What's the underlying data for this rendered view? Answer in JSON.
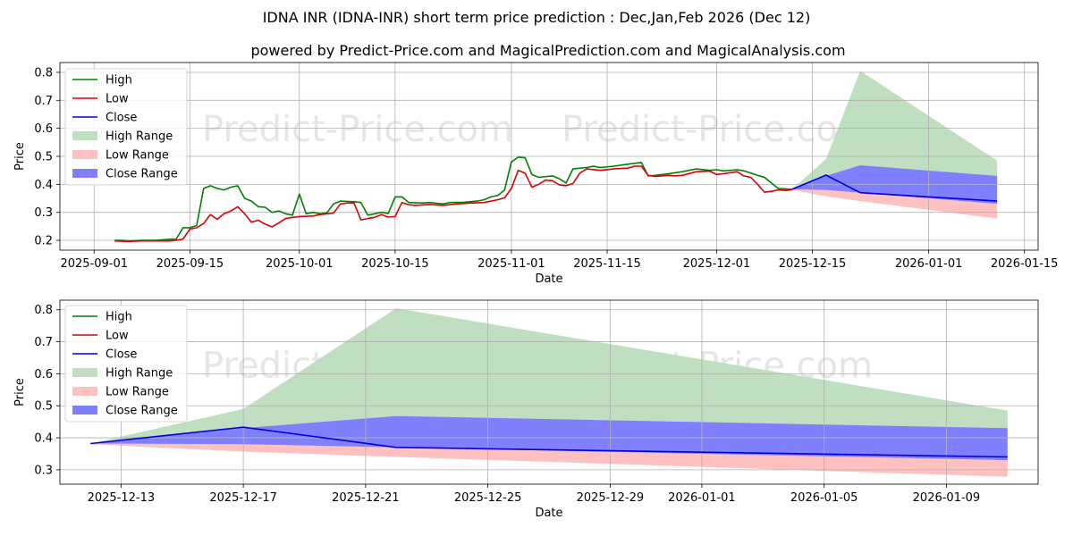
{
  "title": "IDNA INR (IDNA-INR) short term price prediction : Dec,Jan,Feb 2026 (Dec 12)",
  "subtitle": "powered by Predict-Price.com and MagicalPrediction.com and MagicalAnalysis.com",
  "watermark": "Predict-Price.com",
  "colors": {
    "high": "#008000",
    "low": "#dd0000",
    "close": "#0000dd",
    "high_range": "#c0dfc0",
    "low_range": "#ffc0c0",
    "close_range": "#8080ff",
    "grid": "#b0b0b0"
  },
  "legend": [
    {
      "key": "high",
      "label": "High",
      "kind": "line"
    },
    {
      "key": "low",
      "label": "Low",
      "kind": "line"
    },
    {
      "key": "close",
      "label": "Close",
      "kind": "line"
    },
    {
      "key": "high_range",
      "label": "High Range",
      "kind": "patch"
    },
    {
      "key": "low_range",
      "label": "Low Range",
      "kind": "patch"
    },
    {
      "key": "close_range",
      "label": "Close Range",
      "kind": "patch"
    }
  ],
  "chart_data": [
    {
      "type": "line",
      "name": "top",
      "xlabel": "Date",
      "ylabel": "Price",
      "xlim": [
        "2025-08-27",
        "2026-01-17"
      ],
      "ylim": [
        0.165,
        0.835
      ],
      "yticks": [
        0.2,
        0.3,
        0.4,
        0.5,
        0.6,
        0.7,
        0.8
      ],
      "ytick_labels": [
        "0.2",
        "0.3",
        "0.4",
        "0.5",
        "0.6",
        "0.7",
        "0.8"
      ],
      "xticks": [
        "2025-09-01",
        "2025-09-15",
        "2025-10-01",
        "2025-10-15",
        "2025-11-01",
        "2025-11-15",
        "2025-12-01",
        "2025-12-15",
        "2026-01-01",
        "2026-01-15"
      ],
      "xtick_labels": [
        "2025-09-01",
        "2025-09-15",
        "2025-10-01",
        "2025-10-15",
        "2025-11-01",
        "2025-11-15",
        "2025-12-01",
        "2025-12-15",
        "2026-01-01",
        "2026-01-15"
      ],
      "grid": true,
      "legend_position": "top-left",
      "series": [
        {
          "name": "High",
          "key": "high",
          "points": [
            [
              "2025-09-04",
              0.2
            ],
            [
              "2025-09-05",
              0.2
            ],
            [
              "2025-09-06",
              0.198
            ],
            [
              "2025-09-08",
              0.2
            ],
            [
              "2025-09-10",
              0.2
            ],
            [
              "2025-09-12",
              0.204
            ],
            [
              "2025-09-13",
              0.205
            ],
            [
              "2025-09-14",
              0.245
            ],
            [
              "2025-09-15",
              0.245
            ],
            [
              "2025-09-16",
              0.253
            ],
            [
              "2025-09-17",
              0.385
            ],
            [
              "2025-09-18",
              0.395
            ],
            [
              "2025-09-19",
              0.385
            ],
            [
              "2025-09-20",
              0.38
            ],
            [
              "2025-09-21",
              0.39
            ],
            [
              "2025-09-22",
              0.395
            ],
            [
              "2025-09-23",
              0.35
            ],
            [
              "2025-09-24",
              0.34
            ],
            [
              "2025-09-25",
              0.32
            ],
            [
              "2025-09-26",
              0.318
            ],
            [
              "2025-09-27",
              0.3
            ],
            [
              "2025-09-28",
              0.305
            ],
            [
              "2025-09-29",
              0.295
            ],
            [
              "2025-09-30",
              0.29
            ],
            [
              "2025-10-01",
              0.365
            ],
            [
              "2025-10-02",
              0.295
            ],
            [
              "2025-10-03",
              0.3
            ],
            [
              "2025-10-04",
              0.295
            ],
            [
              "2025-10-05",
              0.298
            ],
            [
              "2025-10-06",
              0.33
            ],
            [
              "2025-10-07",
              0.34
            ],
            [
              "2025-10-09",
              0.338
            ],
            [
              "2025-10-10",
              0.335
            ],
            [
              "2025-10-11",
              0.29
            ],
            [
              "2025-10-12",
              0.295
            ],
            [
              "2025-10-13",
              0.3
            ],
            [
              "2025-10-14",
              0.296
            ],
            [
              "2025-10-15",
              0.355
            ],
            [
              "2025-10-16",
              0.355
            ],
            [
              "2025-10-17",
              0.335
            ],
            [
              "2025-10-19",
              0.333
            ],
            [
              "2025-10-20",
              0.335
            ],
            [
              "2025-10-22",
              0.33
            ],
            [
              "2025-10-23",
              0.335
            ],
            [
              "2025-10-25",
              0.336
            ],
            [
              "2025-10-27",
              0.34
            ],
            [
              "2025-10-28",
              0.345
            ],
            [
              "2025-10-29",
              0.355
            ],
            [
              "2025-10-30",
              0.36
            ],
            [
              "2025-10-31",
              0.38
            ],
            [
              "2025-11-01",
              0.48
            ],
            [
              "2025-11-02",
              0.497
            ],
            [
              "2025-11-03",
              0.495
            ],
            [
              "2025-11-04",
              0.435
            ],
            [
              "2025-11-05",
              0.425
            ],
            [
              "2025-11-07",
              0.43
            ],
            [
              "2025-11-08",
              0.42
            ],
            [
              "2025-11-09",
              0.405
            ],
            [
              "2025-11-10",
              0.455
            ],
            [
              "2025-11-12",
              0.46
            ],
            [
              "2025-11-13",
              0.465
            ],
            [
              "2025-11-14",
              0.46
            ],
            [
              "2025-11-16",
              0.465
            ],
            [
              "2025-11-18",
              0.472
            ],
            [
              "2025-11-20",
              0.478
            ],
            [
              "2025-11-21",
              0.43
            ],
            [
              "2025-11-22",
              0.432
            ],
            [
              "2025-11-24",
              0.438
            ],
            [
              "2025-11-26",
              0.445
            ],
            [
              "2025-11-28",
              0.455
            ],
            [
              "2025-11-30",
              0.45
            ],
            [
              "2025-12-01",
              0.452
            ],
            [
              "2025-12-02",
              0.448
            ],
            [
              "2025-12-04",
              0.452
            ],
            [
              "2025-12-05",
              0.448
            ],
            [
              "2025-12-06",
              0.44
            ],
            [
              "2025-12-07",
              0.432
            ],
            [
              "2025-12-08",
              0.425
            ],
            [
              "2025-12-09",
              0.405
            ],
            [
              "2025-12-10",
              0.385
            ],
            [
              "2025-12-11",
              0.384
            ],
            [
              "2025-12-12",
              0.382
            ]
          ]
        },
        {
          "name": "Low",
          "key": "low",
          "points": [
            [
              "2025-09-04",
              0.198
            ],
            [
              "2025-09-06",
              0.196
            ],
            [
              "2025-09-08",
              0.198
            ],
            [
              "2025-09-10",
              0.198
            ],
            [
              "2025-09-12",
              0.198
            ],
            [
              "2025-09-13",
              0.2
            ],
            [
              "2025-09-14",
              0.205
            ],
            [
              "2025-09-15",
              0.24
            ],
            [
              "2025-09-16",
              0.245
            ],
            [
              "2025-09-17",
              0.26
            ],
            [
              "2025-09-18",
              0.292
            ],
            [
              "2025-09-19",
              0.275
            ],
            [
              "2025-09-20",
              0.295
            ],
            [
              "2025-09-21",
              0.305
            ],
            [
              "2025-09-22",
              0.32
            ],
            [
              "2025-09-23",
              0.295
            ],
            [
              "2025-09-24",
              0.265
            ],
            [
              "2025-09-25",
              0.272
            ],
            [
              "2025-09-26",
              0.258
            ],
            [
              "2025-09-27",
              0.248
            ],
            [
              "2025-09-28",
              0.262
            ],
            [
              "2025-09-29",
              0.278
            ],
            [
              "2025-09-30",
              0.282
            ],
            [
              "2025-10-01",
              0.285
            ],
            [
              "2025-10-03",
              0.287
            ],
            [
              "2025-10-04",
              0.292
            ],
            [
              "2025-10-06",
              0.297
            ],
            [
              "2025-10-07",
              0.33
            ],
            [
              "2025-10-08",
              0.333
            ],
            [
              "2025-10-09",
              0.333
            ],
            [
              "2025-10-10",
              0.273
            ],
            [
              "2025-10-11",
              0.278
            ],
            [
              "2025-10-12",
              0.282
            ],
            [
              "2025-10-13",
              0.292
            ],
            [
              "2025-10-14",
              0.283
            ],
            [
              "2025-10-15",
              0.285
            ],
            [
              "2025-10-16",
              0.335
            ],
            [
              "2025-10-17",
              0.327
            ],
            [
              "2025-10-18",
              0.325
            ],
            [
              "2025-10-20",
              0.328
            ],
            [
              "2025-10-22",
              0.325
            ],
            [
              "2025-10-24",
              0.33
            ],
            [
              "2025-10-26",
              0.333
            ],
            [
              "2025-10-28",
              0.335
            ],
            [
              "2025-10-30",
              0.345
            ],
            [
              "2025-10-31",
              0.352
            ],
            [
              "2025-11-01",
              0.385
            ],
            [
              "2025-11-02",
              0.45
            ],
            [
              "2025-11-03",
              0.44
            ],
            [
              "2025-11-04",
              0.39
            ],
            [
              "2025-11-05",
              0.4
            ],
            [
              "2025-11-06",
              0.415
            ],
            [
              "2025-11-07",
              0.413
            ],
            [
              "2025-11-08",
              0.398
            ],
            [
              "2025-11-09",
              0.395
            ],
            [
              "2025-11-10",
              0.403
            ],
            [
              "2025-11-11",
              0.44
            ],
            [
              "2025-11-12",
              0.455
            ],
            [
              "2025-11-14",
              0.45
            ],
            [
              "2025-11-16",
              0.455
            ],
            [
              "2025-11-18",
              0.458
            ],
            [
              "2025-11-19",
              0.465
            ],
            [
              "2025-11-20",
              0.465
            ],
            [
              "2025-11-21",
              0.432
            ],
            [
              "2025-11-22",
              0.428
            ],
            [
              "2025-11-24",
              0.432
            ],
            [
              "2025-11-25",
              0.43
            ],
            [
              "2025-11-26",
              0.432
            ],
            [
              "2025-11-28",
              0.445
            ],
            [
              "2025-11-30",
              0.447
            ],
            [
              "2025-12-01",
              0.435
            ],
            [
              "2025-12-02",
              0.438
            ],
            [
              "2025-12-04",
              0.445
            ],
            [
              "2025-12-05",
              0.43
            ],
            [
              "2025-12-06",
              0.425
            ],
            [
              "2025-12-07",
              0.4
            ],
            [
              "2025-12-08",
              0.372
            ],
            [
              "2025-12-09",
              0.375
            ],
            [
              "2025-12-10",
              0.38
            ],
            [
              "2025-12-11",
              0.378
            ],
            [
              "2025-12-12",
              0.38
            ]
          ]
        },
        {
          "name": "Close",
          "key": "close",
          "points": [
            [
              "2025-12-12",
              0.382
            ],
            [
              "2025-12-17",
              0.433
            ],
            [
              "2025-12-22",
              0.37
            ],
            [
              "2026-01-11",
              0.34
            ]
          ]
        }
      ],
      "ranges": [
        {
          "name": "High Range",
          "key": "high_range",
          "points": [
            [
              "2025-12-12",
              0.382,
              0.382
            ],
            [
              "2025-12-17",
              0.49,
              0.38
            ],
            [
              "2025-12-22",
              0.805,
              0.37
            ],
            [
              "2026-01-11",
              0.485,
              0.33
            ]
          ]
        },
        {
          "name": "Low Range",
          "key": "low_range",
          "points": [
            [
              "2025-12-12",
              0.382,
              0.38
            ],
            [
              "2025-12-17",
              0.38,
              0.357
            ],
            [
              "2025-12-22",
              0.37,
              0.34
            ],
            [
              "2026-01-11",
              0.33,
              0.278
            ]
          ]
        },
        {
          "name": "Close Range",
          "key": "close_range",
          "points": [
            [
              "2025-12-12",
              0.382,
              0.382
            ],
            [
              "2025-12-17",
              0.43,
              0.38
            ],
            [
              "2025-12-22",
              0.468,
              0.37
            ],
            [
              "2026-01-11",
              0.43,
              0.33
            ]
          ]
        }
      ]
    },
    {
      "type": "line",
      "name": "bottom",
      "xlabel": "Date",
      "ylabel": "Price",
      "xlim": [
        "2025-12-11",
        "2026-01-12"
      ],
      "ylim": [
        0.255,
        0.83
      ],
      "yticks": [
        0.3,
        0.4,
        0.5,
        0.6,
        0.7,
        0.8
      ],
      "ytick_labels": [
        "0.3",
        "0.4",
        "0.5",
        "0.6",
        "0.7",
        "0.8"
      ],
      "xticks": [
        "2025-12-13",
        "2025-12-17",
        "2025-12-21",
        "2025-12-25",
        "2025-12-29",
        "2026-01-01",
        "2026-01-05",
        "2026-01-09"
      ],
      "xtick_labels": [
        "2025-12-13",
        "2025-12-17",
        "2025-12-21",
        "2025-12-25",
        "2025-12-29",
        "2026-01-01",
        "2026-01-05",
        "2026-01-09"
      ],
      "grid": true,
      "legend_position": "top-left",
      "series": [
        {
          "name": "Close",
          "key": "close",
          "points": [
            [
              "2025-12-12",
              0.382
            ],
            [
              "2025-12-17",
              0.433
            ],
            [
              "2025-12-22",
              0.37
            ],
            [
              "2026-01-11",
              0.34
            ]
          ]
        }
      ],
      "ranges": [
        {
          "name": "High Range",
          "key": "high_range",
          "points": [
            [
              "2025-12-12",
              0.382,
              0.382
            ],
            [
              "2025-12-17",
              0.49,
              0.38
            ],
            [
              "2025-12-22",
              0.805,
              0.37
            ],
            [
              "2026-01-11",
              0.485,
              0.33
            ]
          ]
        },
        {
          "name": "Low Range",
          "key": "low_range",
          "points": [
            [
              "2025-12-12",
              0.382,
              0.38
            ],
            [
              "2025-12-17",
              0.38,
              0.357
            ],
            [
              "2025-12-22",
              0.37,
              0.34
            ],
            [
              "2026-01-11",
              0.33,
              0.278
            ]
          ]
        },
        {
          "name": "Close Range",
          "key": "close_range",
          "points": [
            [
              "2025-12-12",
              0.382,
              0.382
            ],
            [
              "2025-12-17",
              0.43,
              0.38
            ],
            [
              "2025-12-22",
              0.468,
              0.37
            ],
            [
              "2026-01-11",
              0.43,
              0.33
            ]
          ]
        }
      ]
    }
  ]
}
